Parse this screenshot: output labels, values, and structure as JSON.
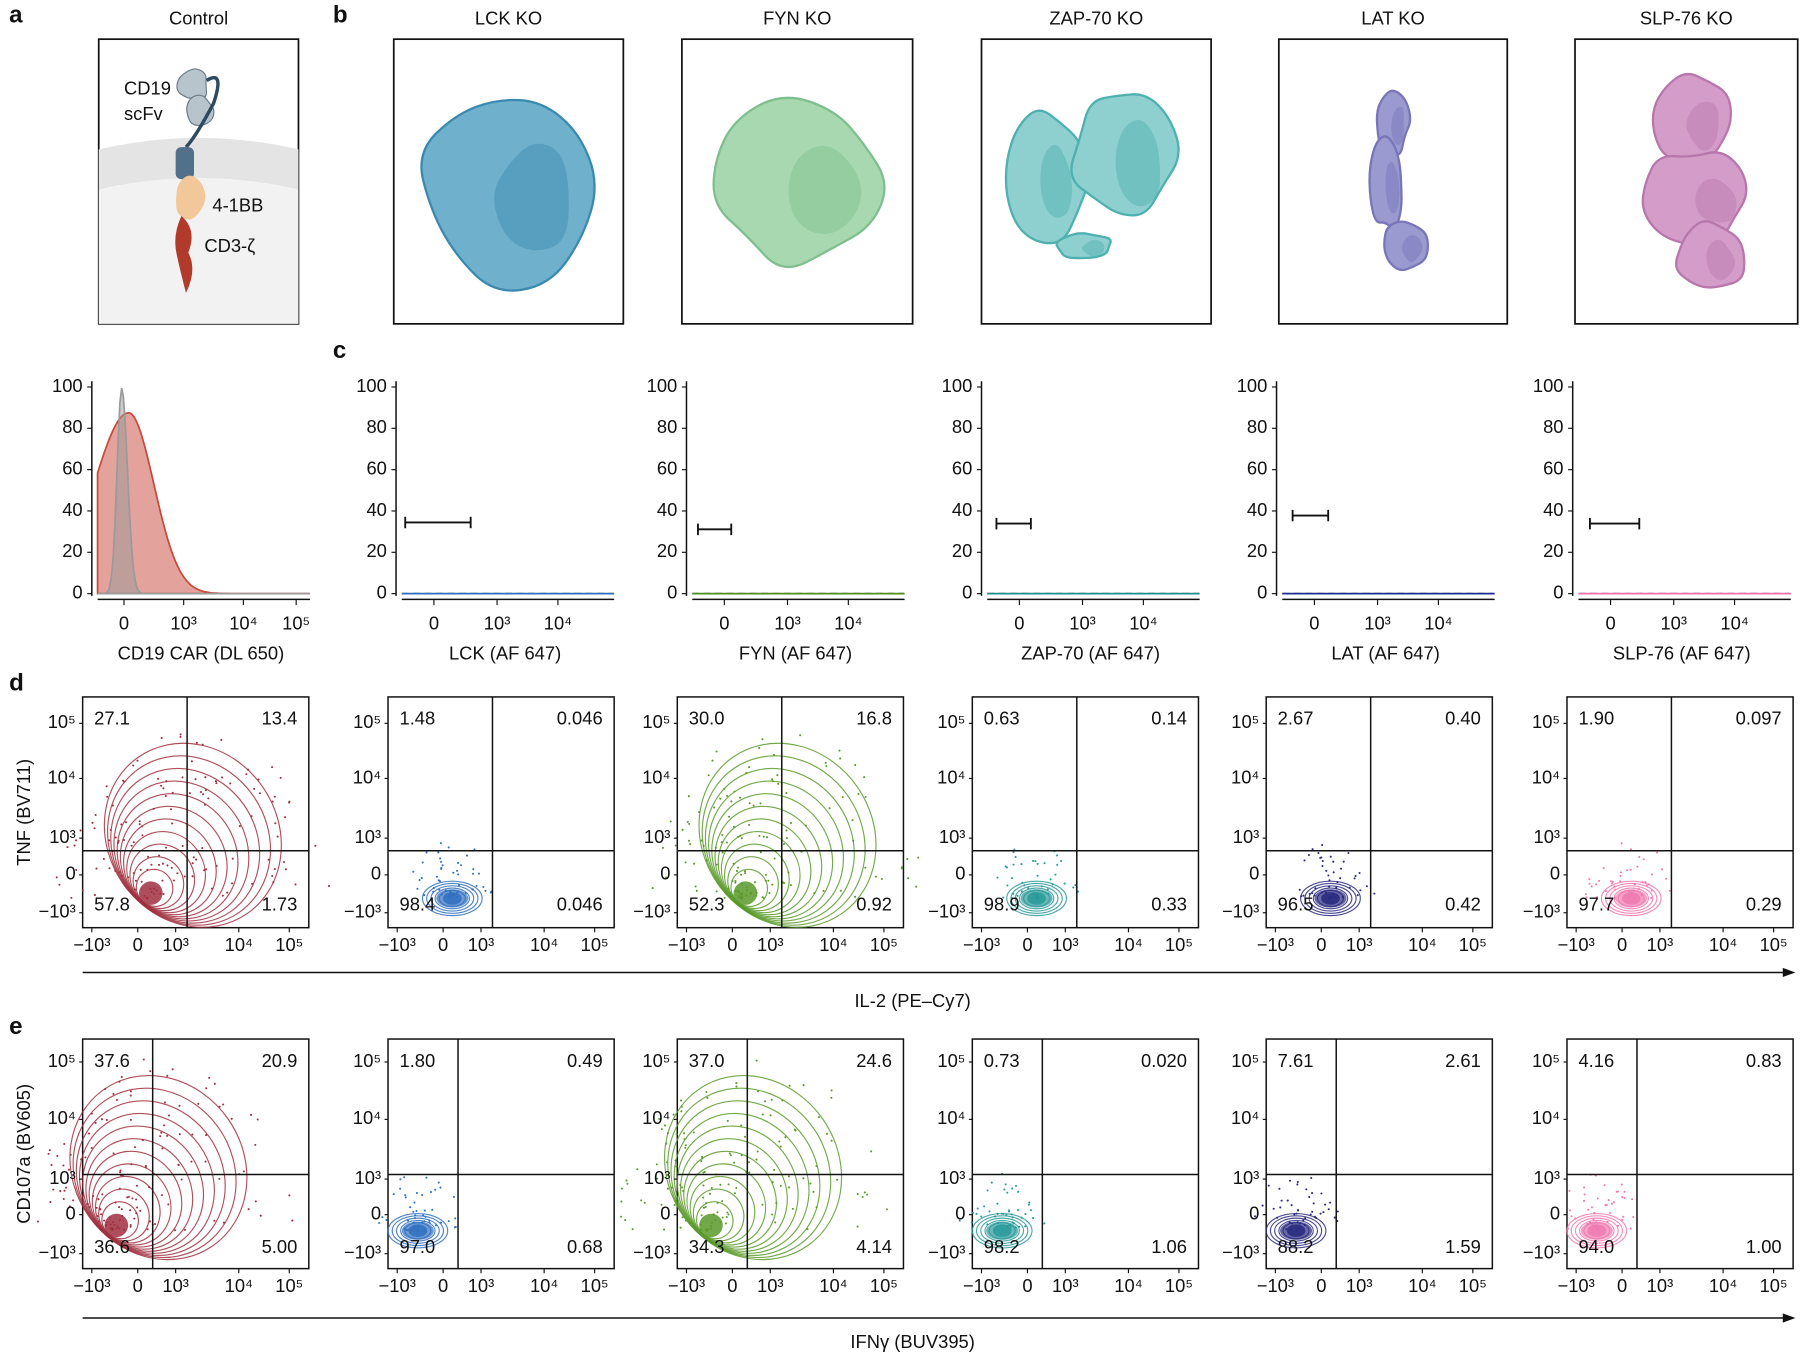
{
  "panel_labels": [
    "a",
    "b",
    "c",
    "d",
    "e"
  ],
  "schematic": {
    "titles": [
      "Control",
      "LCK KO",
      "FYN KO",
      "ZAP-70 KO",
      "LAT KO",
      "SLP-76 KO"
    ],
    "control_labels": [
      "CD19",
      "scFv",
      "4-1BB",
      "CD3-ζ"
    ]
  },
  "histograms": {
    "yticks": [
      "0",
      "20",
      "40",
      "60",
      "80",
      "100"
    ],
    "xticks_control": [
      "0",
      "10³",
      "10⁴",
      "10⁵"
    ],
    "xticks_ko": [
      "0",
      "10³",
      "10⁴"
    ],
    "xlabels": [
      "CD19 CAR (DL 650)",
      "LCK (AF 647)",
      "FYN (AF 647)",
      "ZAP-70 (AF 647)",
      "LAT (AF 647)",
      "SLP-76 (AF 647)"
    ]
  },
  "flow": {
    "yticks": [
      "−10³",
      "0",
      "10³",
      "10⁴",
      "10⁵"
    ],
    "xticks": [
      "−10³",
      "0",
      "10³",
      "10⁴",
      "10⁵"
    ],
    "d": {
      "ylabel": "TNF (BV711)",
      "xlabel": "IL-2 (PE–Cy7)",
      "quadrants": [
        [
          "27.1",
          "13.4",
          "57.8",
          "1.73"
        ],
        [
          "1.48",
          "0.046",
          "98.4",
          "0.046"
        ],
        [
          "30.0",
          "16.8",
          "52.3",
          "0.92"
        ],
        [
          "0.63",
          "0.14",
          "98.9",
          "0.33"
        ],
        [
          "2.67",
          "0.40",
          "96.5",
          "0.42"
        ],
        [
          "1.90",
          "0.097",
          "97.7",
          "0.29"
        ]
      ]
    },
    "e": {
      "ylabel": "CD107a (BV605)",
      "xlabel": "IFNγ (BUV395)",
      "quadrants": [
        [
          "37.6",
          "20.9",
          "36.6",
          "5.00"
        ],
        [
          "1.80",
          "0.49",
          "97.0",
          "0.68"
        ],
        [
          "37.0",
          "24.6",
          "34.3",
          "4.14"
        ],
        [
          "0.73",
          "0.020",
          "98.2",
          "1.06"
        ],
        [
          "7.61",
          "2.61",
          "88.2",
          "1.59"
        ],
        [
          "4.16",
          "0.83",
          "94.0",
          "1.00"
        ]
      ]
    }
  }
}
